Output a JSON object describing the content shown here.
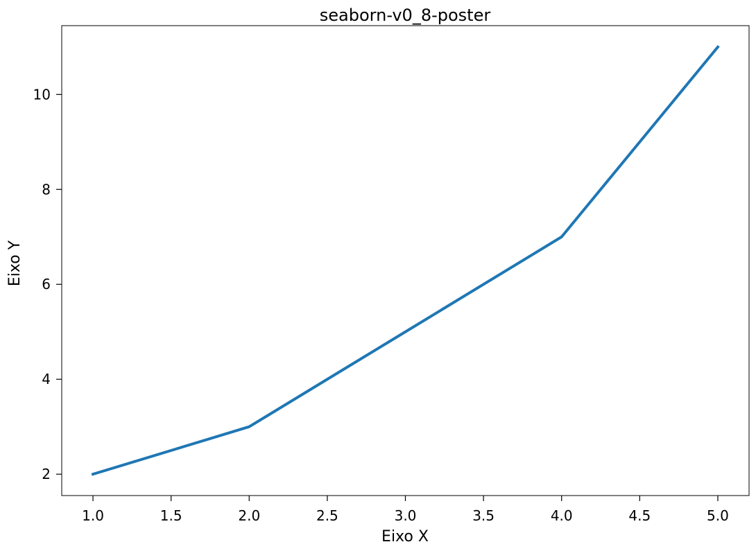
{
  "chart_data": {
    "type": "line",
    "title": "seaborn-v0_8-poster",
    "xlabel": "Eixo X",
    "ylabel": "Eixo Y",
    "x": [
      1,
      2,
      3,
      4,
      5
    ],
    "series": [
      {
        "values": [
          2,
          3,
          5,
          7,
          11
        ],
        "color": "#1f77b4"
      }
    ],
    "xlim": [
      0.8,
      5.2
    ],
    "ylim": [
      1.55,
      11.45
    ],
    "xticks": [
      1.0,
      1.5,
      2.0,
      2.5,
      3.0,
      3.5,
      4.0,
      4.5,
      5.0
    ],
    "xtick_labels": [
      "1.0",
      "1.5",
      "2.0",
      "2.5",
      "3.0",
      "3.5",
      "4.0",
      "4.5",
      "5.0"
    ],
    "yticks": [
      2,
      4,
      6,
      8,
      10
    ],
    "ytick_labels": [
      "2",
      "4",
      "6",
      "8",
      "10"
    ],
    "grid": false,
    "legend": false
  }
}
